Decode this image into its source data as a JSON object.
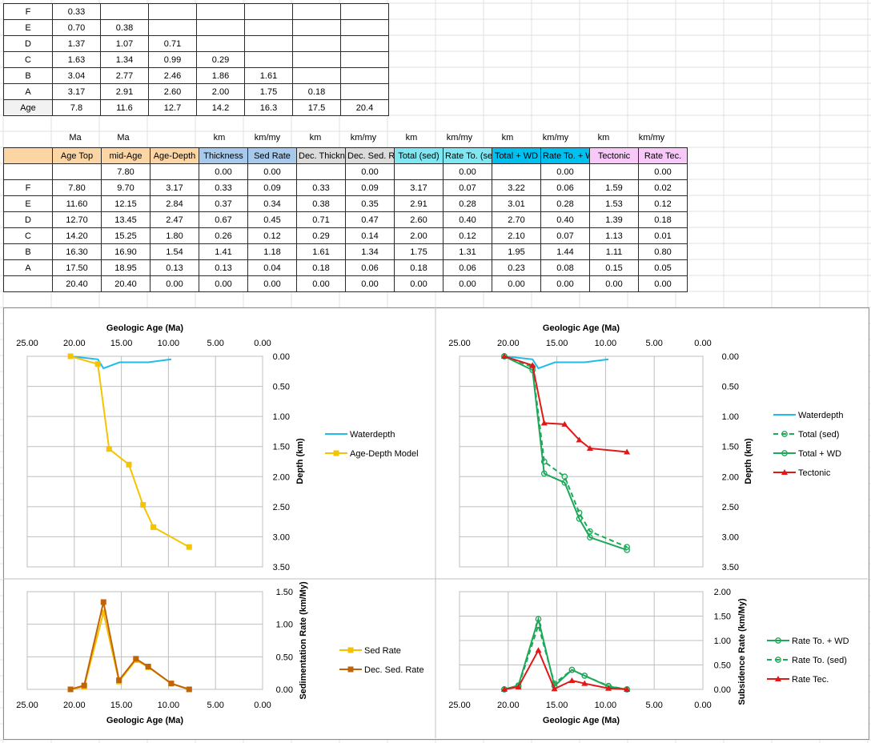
{
  "table1": {
    "rows": [
      {
        "label": "F",
        "values": [
          "0.33",
          "",
          "",
          "",
          "",
          "",
          ""
        ]
      },
      {
        "label": "E",
        "values": [
          "0.70",
          "0.38",
          "",
          "",
          "",
          "",
          ""
        ]
      },
      {
        "label": "D",
        "values": [
          "1.37",
          "1.07",
          "0.71",
          "",
          "",
          "",
          ""
        ]
      },
      {
        "label": "C",
        "values": [
          "1.63",
          "1.34",
          "0.99",
          "0.29",
          "",
          "",
          ""
        ]
      },
      {
        "label": "B",
        "values": [
          "3.04",
          "2.77",
          "2.46",
          "1.86",
          "1.61",
          "",
          ""
        ]
      },
      {
        "label": "A",
        "values": [
          "3.17",
          "2.91",
          "2.60",
          "2.00",
          "1.75",
          "0.18",
          ""
        ]
      },
      {
        "label": "Age",
        "values": [
          "7.8",
          "11.6",
          "12.7",
          "14.2",
          "16.3",
          "17.5",
          "20.4"
        ]
      }
    ]
  },
  "units": [
    "Ma",
    "Ma",
    "",
    "km",
    "km/my",
    "km",
    "km/my",
    "km",
    "km/my",
    "km",
    "km/my",
    "km",
    "km/my"
  ],
  "table2": {
    "headers": [
      "",
      "Age Top",
      "mid-Age",
      "Age-Depth",
      "Thickness",
      "Sed Rate",
      "Dec. Thickness",
      "Dec. Sed. Rate",
      "Total (sed)",
      "Rate To. (sed)",
      "Total + WD",
      "Rate To. + WD",
      "Tectonic",
      "Rate Tec."
    ],
    "header_colors": [
      "#fcd5a4",
      "#fcd5a4",
      "#fcd5a4",
      "#fcd5a4",
      "#a6c9ec",
      "#a6c9ec",
      "#dcdcdc",
      "#dcdcdc",
      "#7fe7f2",
      "#7fe7f2",
      "#00c0f0",
      "#00c0f0",
      "#f8c8f8",
      "#f8c8f8"
    ],
    "rows": [
      [
        "",
        "",
        "7.80",
        "",
        "0.00",
        "0.00",
        "",
        "0.00",
        "",
        "0.00",
        "",
        "0.00",
        "",
        "0.00"
      ],
      [
        "F",
        "7.80",
        "9.70",
        "3.17",
        "0.33",
        "0.09",
        "0.33",
        "0.09",
        "3.17",
        "0.07",
        "3.22",
        "0.06",
        "1.59",
        "0.02"
      ],
      [
        "E",
        "11.60",
        "12.15",
        "2.84",
        "0.37",
        "0.34",
        "0.38",
        "0.35",
        "2.91",
        "0.28",
        "3.01",
        "0.28",
        "1.53",
        "0.12"
      ],
      [
        "D",
        "12.70",
        "13.45",
        "2.47",
        "0.67",
        "0.45",
        "0.71",
        "0.47",
        "2.60",
        "0.40",
        "2.70",
        "0.40",
        "1.39",
        "0.18"
      ],
      [
        "C",
        "14.20",
        "15.25",
        "1.80",
        "0.26",
        "0.12",
        "0.29",
        "0.14",
        "2.00",
        "0.12",
        "2.10",
        "0.07",
        "1.13",
        "0.01"
      ],
      [
        "B",
        "16.30",
        "16.90",
        "1.54",
        "1.41",
        "1.18",
        "1.61",
        "1.34",
        "1.75",
        "1.31",
        "1.95",
        "1.44",
        "1.11",
        "0.80"
      ],
      [
        "A",
        "17.50",
        "18.95",
        "0.13",
        "0.13",
        "0.04",
        "0.18",
        "0.06",
        "0.18",
        "0.06",
        "0.23",
        "0.08",
        "0.15",
        "0.05"
      ],
      [
        "",
        "20.40",
        "20.40",
        "0.00",
        "0.00",
        "0.00",
        "0.00",
        "0.00",
        "0.00",
        "0.00",
        "0.00",
        "0.00",
        "0.00",
        "0.00"
      ]
    ]
  },
  "colors": {
    "water": "#1fbcea",
    "agedepth": "#f5b800",
    "agedepth_line": "#f5c400",
    "sed": "#f5c000",
    "dec": "#c0640a",
    "total": "#1ea85a",
    "tect": "#e01818"
  },
  "chart_data": [
    {
      "type": "line",
      "title": "",
      "xlabel": "Geologic Age (Ma)",
      "ylabel": "Depth (km)",
      "xlim": [
        25,
        0
      ],
      "ylim": [
        3.5,
        0
      ],
      "xticks": [
        "25.00",
        "20.00",
        "15.00",
        "10.00",
        "5.00",
        "0.00"
      ],
      "yticks": [
        "0.00",
        "0.50",
        "1.00",
        "1.50",
        "2.00",
        "2.50",
        "3.00",
        "3.50"
      ],
      "legend": "right",
      "series": [
        {
          "name": "Waterdepth",
          "x": [
            20.4,
            17.5,
            16.9,
            15.2,
            12.15,
            9.7
          ],
          "y": [
            0,
            0.05,
            0.2,
            0.1,
            0.1,
            0.05
          ]
        },
        {
          "name": "Age-Depth Model",
          "x": [
            20.4,
            17.5,
            16.3,
            14.2,
            12.7,
            11.6,
            7.8
          ],
          "y": [
            0,
            0.13,
            1.54,
            1.8,
            2.47,
            2.84,
            3.17
          ]
        }
      ]
    },
    {
      "type": "line",
      "title": "",
      "xlabel": "Geologic Age (Ma)",
      "ylabel": "Depth (km)",
      "xlim": [
        25,
        0
      ],
      "ylim": [
        3.5,
        0
      ],
      "xticks": [
        "25.00",
        "20.00",
        "15.00",
        "10.00",
        "5.00",
        "0.00"
      ],
      "yticks": [
        "0.00",
        "0.50",
        "1.00",
        "1.50",
        "2.00",
        "2.50",
        "3.00",
        "3.50"
      ],
      "legend": "right",
      "series": [
        {
          "name": "Waterdepth",
          "x": [
            20.4,
            17.5,
            16.9,
            15.2,
            12.15,
            9.7
          ],
          "y": [
            0,
            0.05,
            0.2,
            0.1,
            0.1,
            0.05
          ]
        },
        {
          "name": "Total (sed)",
          "x": [
            20.4,
            17.5,
            16.3,
            14.2,
            12.7,
            11.6,
            7.8
          ],
          "y": [
            0,
            0.18,
            1.75,
            2.0,
            2.6,
            2.91,
            3.17
          ]
        },
        {
          "name": "Total + WD",
          "x": [
            20.4,
            17.5,
            16.3,
            14.2,
            12.7,
            11.6,
            7.8
          ],
          "y": [
            0,
            0.23,
            1.95,
            2.1,
            2.7,
            3.01,
            3.22
          ]
        },
        {
          "name": "Tectonic",
          "x": [
            20.4,
            17.5,
            16.3,
            14.2,
            12.7,
            11.6,
            7.8
          ],
          "y": [
            0,
            0.15,
            1.11,
            1.13,
            1.39,
            1.53,
            1.59
          ]
        }
      ]
    },
    {
      "type": "line",
      "title": "",
      "xlabel": "Geologic Age (Ma)",
      "ylabel": "Sedimentation Rate (km/My)",
      "xlim": [
        25,
        0
      ],
      "ylim": [
        0,
        1.5
      ],
      "xticks": [
        "25.00",
        "20.00",
        "15.00",
        "10.00",
        "5.00",
        "0.00"
      ],
      "yticks": [
        "0.00",
        "0.50",
        "1.00",
        "1.50"
      ],
      "legend": "right",
      "series": [
        {
          "name": "Sed Rate",
          "x": [
            20.4,
            18.95,
            16.9,
            15.25,
            13.45,
            12.15,
            9.7,
            7.8
          ],
          "y": [
            0,
            0.04,
            1.18,
            0.12,
            0.45,
            0.34,
            0.09,
            0
          ]
        },
        {
          "name": "Dec. Sed. Rate",
          "x": [
            20.4,
            18.95,
            16.9,
            15.25,
            13.45,
            12.15,
            9.7,
            7.8
          ],
          "y": [
            0,
            0.06,
            1.34,
            0.14,
            0.47,
            0.35,
            0.09,
            0
          ]
        }
      ]
    },
    {
      "type": "line",
      "title": "",
      "xlabel": "Geologic Age (Ma)",
      "ylabel": "Subsidence Rate (km/My)",
      "xlim": [
        25,
        0
      ],
      "ylim": [
        0,
        2
      ],
      "xticks": [
        "25.00",
        "20.00",
        "15.00",
        "10.00",
        "5.00",
        "0.00"
      ],
      "yticks": [
        "0.00",
        "0.50",
        "1.00",
        "1.50",
        "2.00"
      ],
      "legend": "right",
      "series": [
        {
          "name": "Rate To. + WD",
          "x": [
            20.4,
            18.95,
            16.9,
            15.25,
            13.45,
            12.15,
            9.7,
            7.8
          ],
          "y": [
            0,
            0.08,
            1.44,
            0.07,
            0.4,
            0.28,
            0.06,
            0
          ]
        },
        {
          "name": "Rate To. (sed)",
          "x": [
            20.4,
            18.95,
            16.9,
            15.25,
            13.45,
            12.15,
            9.7,
            7.8
          ],
          "y": [
            0,
            0.06,
            1.31,
            0.12,
            0.4,
            0.28,
            0.07,
            0
          ]
        },
        {
          "name": "Rate Tec.",
          "x": [
            20.4,
            18.95,
            16.9,
            15.25,
            13.45,
            12.15,
            9.7,
            7.8
          ],
          "y": [
            0,
            0.05,
            0.8,
            0.01,
            0.18,
            0.12,
            0.02,
            0
          ]
        }
      ]
    }
  ]
}
